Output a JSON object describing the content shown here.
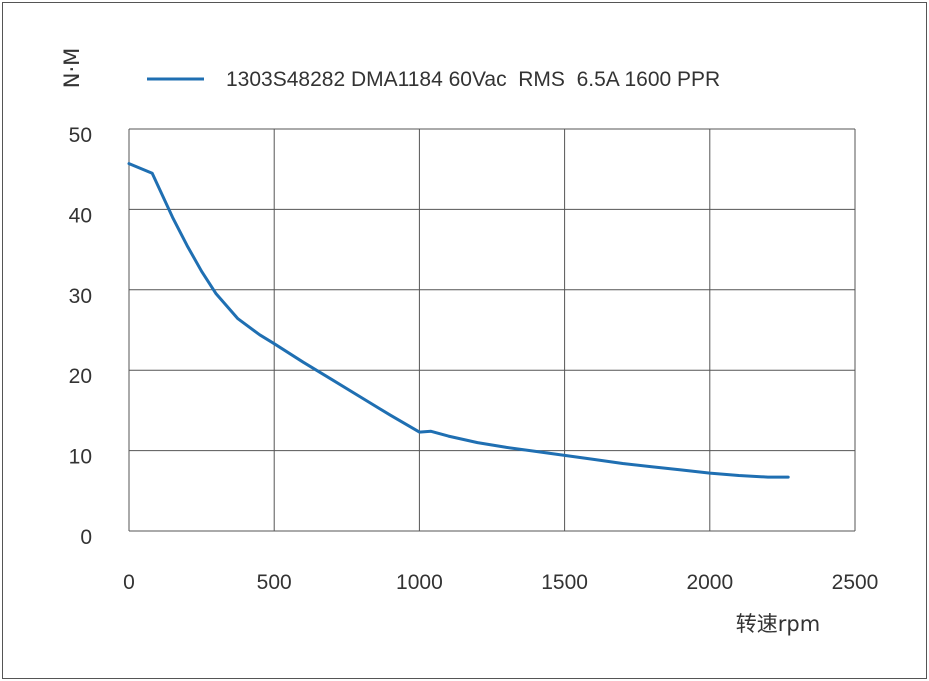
{
  "chart_data": {
    "type": "line",
    "title": "",
    "xlabel": "转速rpm",
    "ylabel": "N·M",
    "xlim": [
      0,
      2500
    ],
    "ylim": [
      0,
      50
    ],
    "x_ticks": [
      "0",
      "500",
      "1000",
      "1500",
      "2000",
      "2500"
    ],
    "y_ticks": [
      "0",
      "10",
      "20",
      "30",
      "40",
      "50"
    ],
    "grid": true,
    "legend_position": "top",
    "series": [
      {
        "name": "1303S48282 DMA1184 60Vac  RMS  6.5A 1600 PPR",
        "color": "#1f6fb2",
        "x": [
          0,
          80,
          150,
          200,
          250,
          300,
          375,
          450,
          500,
          600,
          700,
          800,
          900,
          1000,
          1040,
          1100,
          1200,
          1300,
          1400,
          1500,
          1600,
          1700,
          1800,
          1900,
          2000,
          2100,
          2200,
          2270
        ],
        "y": [
          45.7,
          44.5,
          39.0,
          35.5,
          32.3,
          29.5,
          26.4,
          24.4,
          23.3,
          21.0,
          18.8,
          16.6,
          14.4,
          12.3,
          12.4,
          11.8,
          11.0,
          10.4,
          9.9,
          9.4,
          8.9,
          8.4,
          8.0,
          7.6,
          7.2,
          6.9,
          6.7,
          6.7
        ]
      }
    ]
  }
}
